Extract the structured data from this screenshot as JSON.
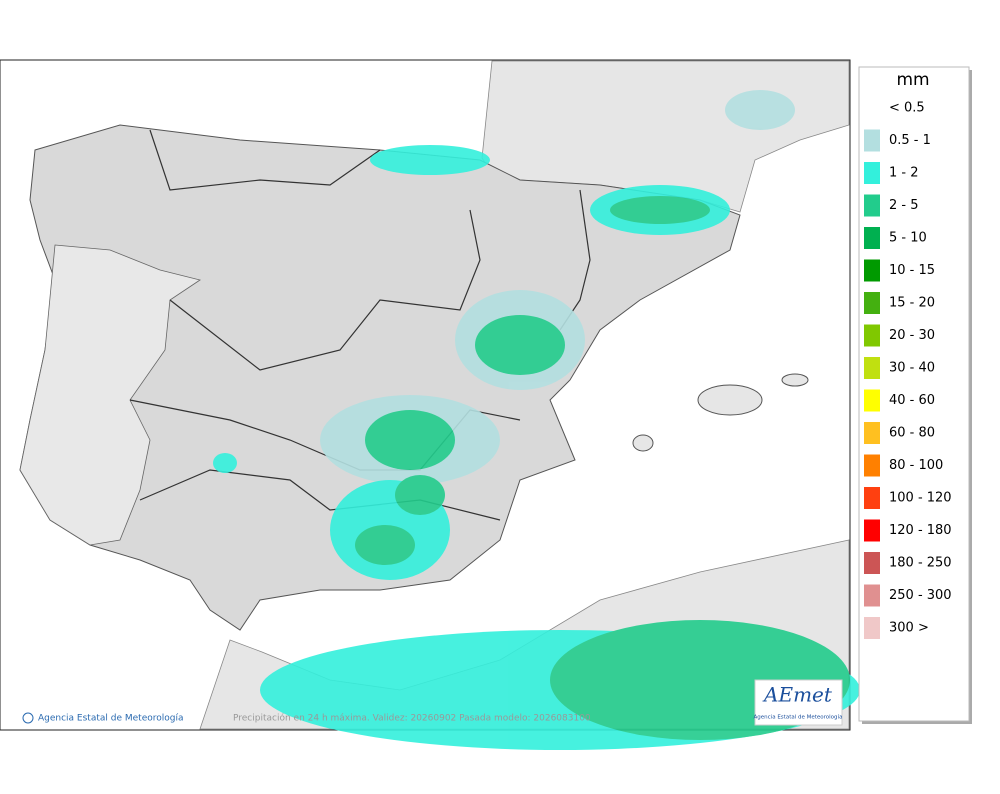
{
  "legend": {
    "title": "mm",
    "items": [
      {
        "label": "< 0.5"
      },
      {
        "label": "0.5 - 1",
        "color": "#b3dfe0"
      },
      {
        "label": "1 - 2",
        "color": "#33f0dc"
      },
      {
        "label": "2 - 5",
        "color": "#22cc8c"
      },
      {
        "label": "5 - 10",
        "color": "#00b050"
      },
      {
        "label": "10 - 15",
        "color": "#009a00"
      },
      {
        "label": "15 - 20",
        "color": "#44b010"
      },
      {
        "label": "20 - 30",
        "color": "#80c800"
      },
      {
        "label": "30 - 40",
        "color": "#c0e010"
      },
      {
        "label": "40 - 60",
        "color": "#ffff00"
      },
      {
        "label": "60 - 80",
        "color": "#ffc020"
      },
      {
        "label": "80 - 100",
        "color": "#ff8000"
      },
      {
        "label": "100 - 120",
        "color": "#ff4010"
      },
      {
        "label": "120 - 180",
        "color": "#ff0000"
      },
      {
        "label": "180 - 250",
        "color": "#cc5555"
      },
      {
        "label": "250 - 300",
        "color": "#e09090"
      },
      {
        "label": "300 >",
        "color": "#f0c8c8"
      }
    ]
  },
  "footer": {
    "credit": "Agencia Estatal de Meteorología",
    "caption": "Precipitación en 24 h máxima. Validez: 20260902 Pasada modelo: 2026083100"
  },
  "logo": {
    "name": "AEmet",
    "subtitle": "Agencia Estatal de Meteorología"
  }
}
